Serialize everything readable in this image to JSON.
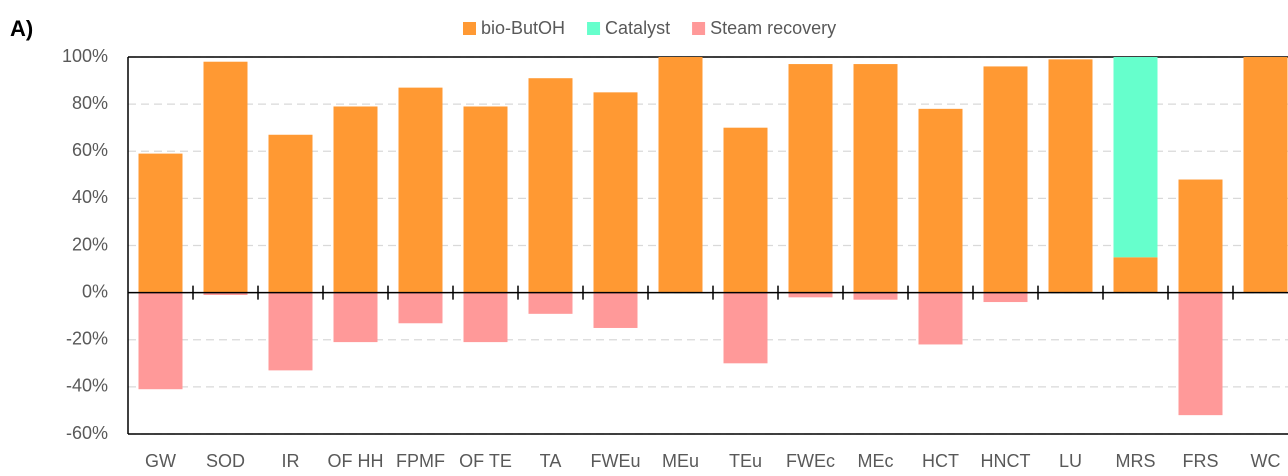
{
  "chart_data": {
    "type": "stacked-bar",
    "panel_label": "A)",
    "categories": [
      "GW",
      "SOD",
      "IR",
      "OF HH",
      "FPMF",
      "OF TE",
      "TA",
      "FWEu",
      "MEu",
      "TEu",
      "FWEc",
      "MEc",
      "HCT",
      "HNCT",
      "LU",
      "MRS",
      "FRS",
      "WC"
    ],
    "series": [
      {
        "name": "bio-ButOH",
        "color": "#ff9933",
        "values": [
          59,
          98,
          67,
          79,
          87,
          79,
          91,
          85,
          100,
          70,
          97,
          97,
          78,
          96,
          99,
          15,
          48,
          100
        ]
      },
      {
        "name": "Catalyst",
        "color": "#66ffcc",
        "values": [
          0,
          0,
          0,
          0,
          0,
          0,
          0,
          0,
          0,
          0,
          0,
          0,
          0,
          0,
          0,
          85,
          0,
          0
        ]
      },
      {
        "name": "Steam recovery",
        "color": "#ff9999",
        "values": [
          -41,
          -1,
          -33,
          -21,
          -13,
          -21,
          -9,
          -15,
          0,
          -30,
          -2,
          -3,
          -22,
          -4,
          0,
          0,
          -52,
          0
        ]
      }
    ],
    "ylim": [
      -60,
      100
    ],
    "yticks": [
      {
        "value": -60,
        "label": "-60%"
      },
      {
        "value": -40,
        "label": "-40%"
      },
      {
        "value": -20,
        "label": "-20%"
      },
      {
        "value": 0,
        "label": "0%"
      },
      {
        "value": 20,
        "label": "20%"
      },
      {
        "value": 40,
        "label": "40%"
      },
      {
        "value": 60,
        "label": "60%"
      },
      {
        "value": 80,
        "label": "80%"
      },
      {
        "value": 100,
        "label": "100%"
      }
    ],
    "grid": true,
    "legend": "top"
  }
}
